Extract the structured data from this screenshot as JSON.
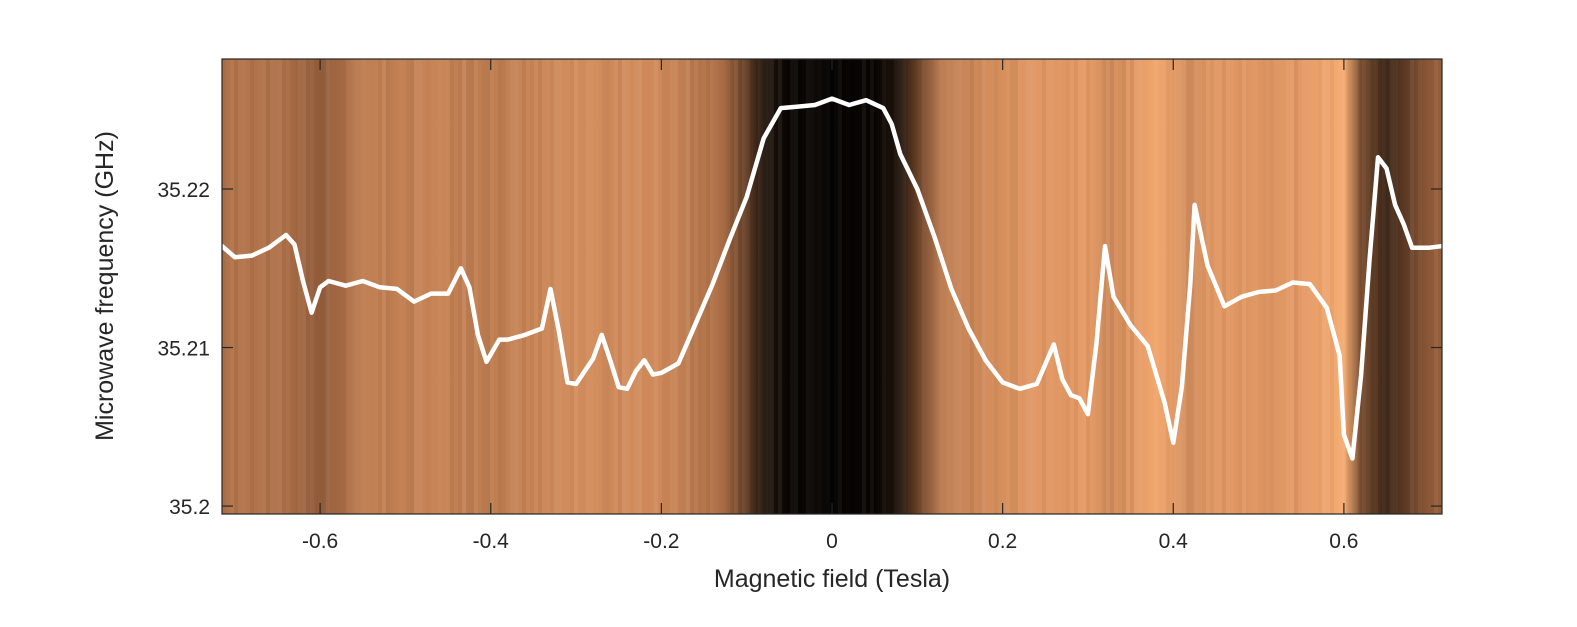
{
  "chart_data": {
    "type": "heatmap",
    "title": "",
    "xlabel": "Magnetic field (Tesla)",
    "ylabel": "Microwave frequency (GHz)",
    "xlim": [
      -0.715,
      0.715
    ],
    "ylim": [
      35.1995,
      35.2282
    ],
    "xticks": [
      -0.6,
      -0.4,
      -0.2,
      0,
      0.2,
      0.4,
      0.6
    ],
    "xtick_labels": [
      "-0.6",
      "-0.4",
      "-0.2",
      "0",
      "0.2",
      "0.4",
      "0.6"
    ],
    "yticks": [
      35.2,
      35.21,
      35.22
    ],
    "ytick_labels": [
      "35.2",
      "35.21",
      "35.22"
    ],
    "grid": false,
    "colormap": "copper",
    "colormap_colors": [
      "#000000",
      "#3a2415",
      "#8a5636",
      "#d08a5a",
      "#f2a56c",
      "#ffc07e"
    ],
    "heatmap_profile": {
      "description_free": true,
      "field": [
        -0.715,
        -0.64,
        -0.6,
        -0.55,
        -0.45,
        -0.4,
        -0.3,
        -0.2,
        -0.13,
        -0.1,
        -0.08,
        -0.05,
        0,
        0.05,
        0.08,
        0.1,
        0.13,
        0.2,
        0.3,
        0.32,
        0.38,
        0.42,
        0.45,
        0.55,
        0.6,
        0.62,
        0.65,
        0.7,
        0.715
      ],
      "intensity": [
        0.52,
        0.5,
        0.42,
        0.55,
        0.58,
        0.55,
        0.62,
        0.6,
        0.5,
        0.3,
        0.12,
        0.03,
        0.02,
        0.03,
        0.12,
        0.32,
        0.55,
        0.66,
        0.74,
        0.6,
        0.8,
        0.62,
        0.7,
        0.72,
        0.85,
        0.35,
        0.2,
        0.42,
        0.45
      ]
    },
    "series": [
      {
        "color": "#ffffff",
        "x": [
          -0.715,
          -0.7,
          -0.68,
          -0.66,
          -0.64,
          -0.63,
          -0.62,
          -0.61,
          -0.6,
          -0.59,
          -0.57,
          -0.55,
          -0.53,
          -0.51,
          -0.49,
          -0.47,
          -0.45,
          -0.435,
          -0.425,
          -0.415,
          -0.405,
          -0.39,
          -0.38,
          -0.36,
          -0.34,
          -0.33,
          -0.32,
          -0.31,
          -0.3,
          -0.29,
          -0.28,
          -0.27,
          -0.26,
          -0.25,
          -0.24,
          -0.23,
          -0.22,
          -0.21,
          -0.2,
          -0.18,
          -0.16,
          -0.14,
          -0.12,
          -0.1,
          -0.08,
          -0.06,
          -0.04,
          -0.02,
          0,
          0.02,
          0.04,
          0.06,
          0.07,
          0.08,
          0.1,
          0.12,
          0.14,
          0.16,
          0.18,
          0.2,
          0.22,
          0.24,
          0.26,
          0.27,
          0.28,
          0.29,
          0.3,
          0.31,
          0.32,
          0.33,
          0.35,
          0.37,
          0.39,
          0.4,
          0.41,
          0.42,
          0.425,
          0.44,
          0.46,
          0.48,
          0.5,
          0.52,
          0.54,
          0.56,
          0.58,
          0.595,
          0.6,
          0.61,
          0.62,
          0.63,
          0.64,
          0.65,
          0.66,
          0.67,
          0.68,
          0.7,
          0.715
        ],
        "y": [
          35.2164,
          35.2157,
          35.2158,
          35.2163,
          35.2171,
          35.2165,
          35.2142,
          35.2122,
          35.2138,
          35.2142,
          35.2139,
          35.2142,
          35.2138,
          35.2137,
          35.2129,
          35.2134,
          35.2134,
          35.215,
          35.2138,
          35.2108,
          35.2091,
          35.2105,
          35.2105,
          35.2108,
          35.2112,
          35.2137,
          35.211,
          35.2078,
          35.2077,
          35.2085,
          35.2093,
          35.2108,
          35.2092,
          35.2075,
          35.2074,
          35.2085,
          35.2092,
          35.2083,
          35.2084,
          35.209,
          35.2115,
          35.214,
          35.2168,
          35.2195,
          35.2232,
          35.2251,
          35.2252,
          35.2253,
          35.2257,
          35.2253,
          35.2256,
          35.2251,
          35.2241,
          35.2222,
          35.22,
          35.217,
          35.2137,
          35.2112,
          35.2092,
          35.2078,
          35.2074,
          35.2077,
          35.2102,
          35.208,
          35.207,
          35.2068,
          35.2058,
          35.2103,
          35.2164,
          35.2132,
          35.2114,
          35.2101,
          35.2065,
          35.204,
          35.2075,
          35.214,
          35.219,
          35.2152,
          35.2126,
          35.2132,
          35.2135,
          35.2136,
          35.2141,
          35.214,
          35.2125,
          35.2095,
          35.2045,
          35.203,
          35.2082,
          35.2155,
          35.222,
          35.2213,
          35.219,
          35.2178,
          35.2163,
          35.2163,
          35.2164
        ]
      }
    ]
  }
}
